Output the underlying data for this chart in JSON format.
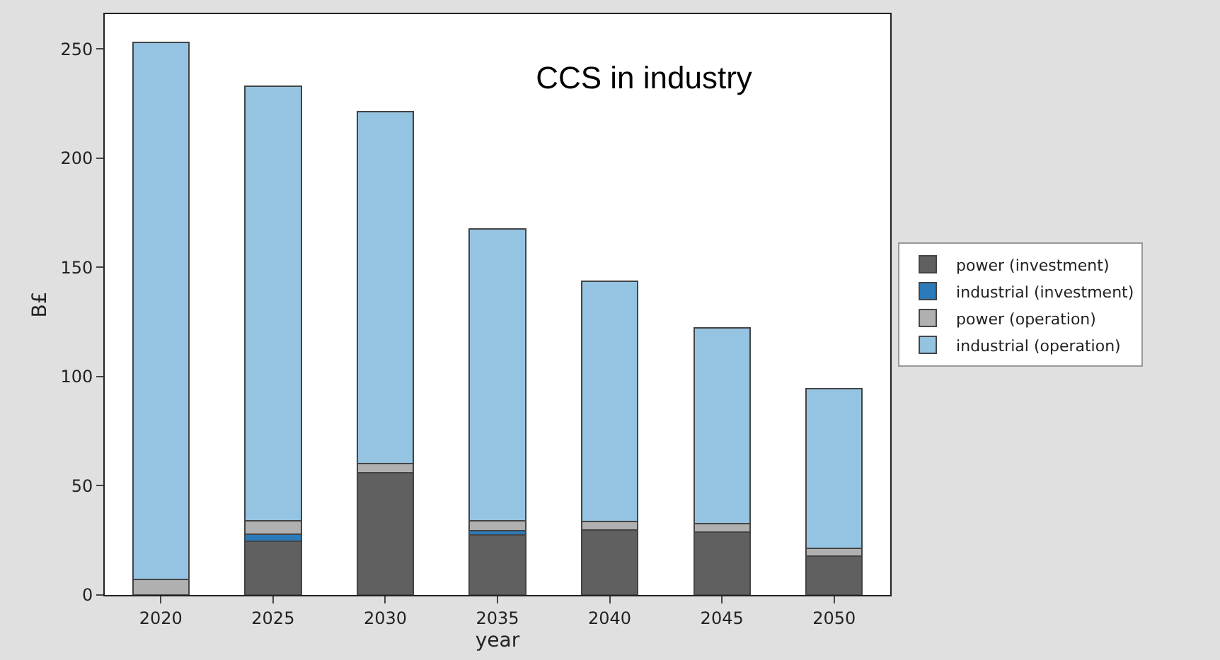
{
  "chart_data": {
    "type": "bar",
    "title": "CCS in industry",
    "xlabel": "year",
    "ylabel": "B£",
    "categories": [
      "2020",
      "2025",
      "2030",
      "2035",
      "2040",
      "2045",
      "2050"
    ],
    "stacked": true,
    "series": [
      {
        "name": "power (investment)",
        "color": "#606060",
        "values": [
          0,
          24.7,
          56,
          27.4,
          29.8,
          28.8,
          17.8
        ]
      },
      {
        "name": "industrial (investment)",
        "color": "#2b7bba",
        "values": [
          0,
          3,
          0,
          2,
          0,
          0,
          0
        ]
      },
      {
        "name": "power (operation)",
        "color": "#b0b0b0",
        "values": [
          7.2,
          6.2,
          4.3,
          4.6,
          4,
          4,
          3.4
        ]
      },
      {
        "name": "industrial (operation)",
        "color": "#95c4e2",
        "values": [
          246,
          199,
          161,
          133.5,
          110,
          89.5,
          73.3
        ]
      }
    ],
    "ylim": [
      0,
      266
    ],
    "yticks": [
      0,
      50,
      100,
      150,
      200,
      250
    ],
    "grid": false,
    "legend": "right"
  }
}
